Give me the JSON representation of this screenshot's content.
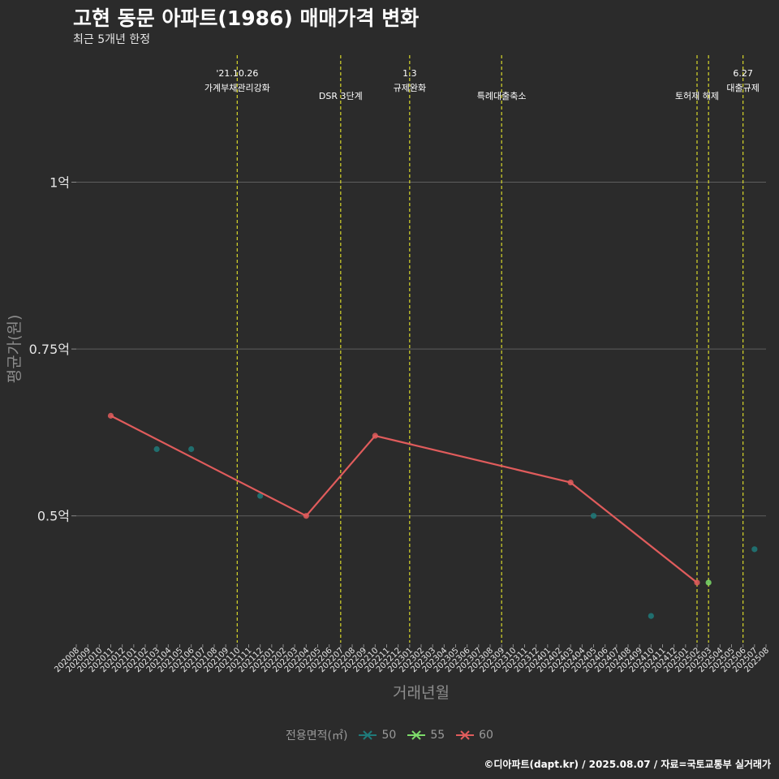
{
  "header": {
    "title": "고현 동문 아파트(1986) 매매가격 변화",
    "subtitle": "최근 5개년 한정"
  },
  "caption": "©디아파트(dapt.kr) / 2025.08.07 / 자료=국토교통부 실거래가",
  "legend": {
    "title": "전용면적(㎡)",
    "items": [
      {
        "label": "50",
        "color": "#1f7a7a"
      },
      {
        "label": "55",
        "color": "#7ddc6a"
      },
      {
        "label": "60",
        "color": "#e05c5c"
      }
    ]
  },
  "chart_data": {
    "type": "line",
    "xlabel": "거래년월",
    "ylabel": "평균가(원)",
    "ylim": [
      0.31,
      1.2
    ],
    "y_ticks": [
      {
        "value": 0.5,
        "label": "0.5억"
      },
      {
        "value": 0.75,
        "label": "0.75억"
      },
      {
        "value": 1.0,
        "label": "1억"
      }
    ],
    "categories": [
      "202008",
      "202009",
      "202010",
      "202011",
      "202012",
      "202101",
      "202102",
      "202103",
      "202104",
      "202105",
      "202106",
      "202107",
      "202108",
      "202109",
      "202110",
      "202111",
      "202112",
      "202201",
      "202202",
      "202203",
      "202204",
      "202205",
      "202206",
      "202207",
      "202208",
      "202209",
      "202210",
      "202211",
      "202212",
      "202301",
      "202302",
      "202303",
      "202304",
      "202305",
      "202306",
      "202307",
      "202308",
      "202309",
      "202310",
      "202311",
      "202312",
      "202401",
      "202402",
      "202403",
      "202404",
      "202405",
      "202406",
      "202407",
      "202408",
      "202409",
      "202410",
      "202411",
      "202412",
      "202501",
      "202502",
      "202503",
      "202504",
      "202505",
      "202506",
      "202507",
      "202508"
    ],
    "series": [
      {
        "name": "50",
        "color": "#1f7a7a",
        "line": false,
        "points": [
          {
            "x": "202103",
            "y": 0.6
          },
          {
            "x": "202106",
            "y": 0.6
          },
          {
            "x": "202112",
            "y": 0.53
          },
          {
            "x": "202405",
            "y": 0.5
          },
          {
            "x": "202410",
            "y": 0.35
          },
          {
            "x": "202507",
            "y": 0.45
          }
        ]
      },
      {
        "name": "55",
        "color": "#7ddc6a",
        "line": false,
        "points": [
          {
            "x": "202503",
            "y": 0.4
          }
        ]
      },
      {
        "name": "60",
        "color": "#e05c5c",
        "line": true,
        "points": [
          {
            "x": "202011",
            "y": 0.65
          },
          {
            "x": "202204",
            "y": 0.5
          },
          {
            "x": "202210",
            "y": 0.62
          },
          {
            "x": "202403",
            "y": 0.55
          },
          {
            "x": "202502",
            "y": 0.4
          }
        ]
      }
    ],
    "events": [
      {
        "x": "202110",
        "lines": [
          "'21.10.26",
          "가계부채관리강화"
        ]
      },
      {
        "x": "202207",
        "lines": [
          "DSR 3단계"
        ]
      },
      {
        "x": "202301",
        "lines": [
          "1.3",
          "규제완화"
        ]
      },
      {
        "x": "202309",
        "lines": [
          "특례대출축소"
        ]
      },
      {
        "x": "202502",
        "lines": [
          "토허제 해제"
        ]
      },
      {
        "x": "202503",
        "lines": []
      },
      {
        "x": "202506",
        "lines": [
          "6.27",
          "대출규제"
        ]
      }
    ]
  }
}
